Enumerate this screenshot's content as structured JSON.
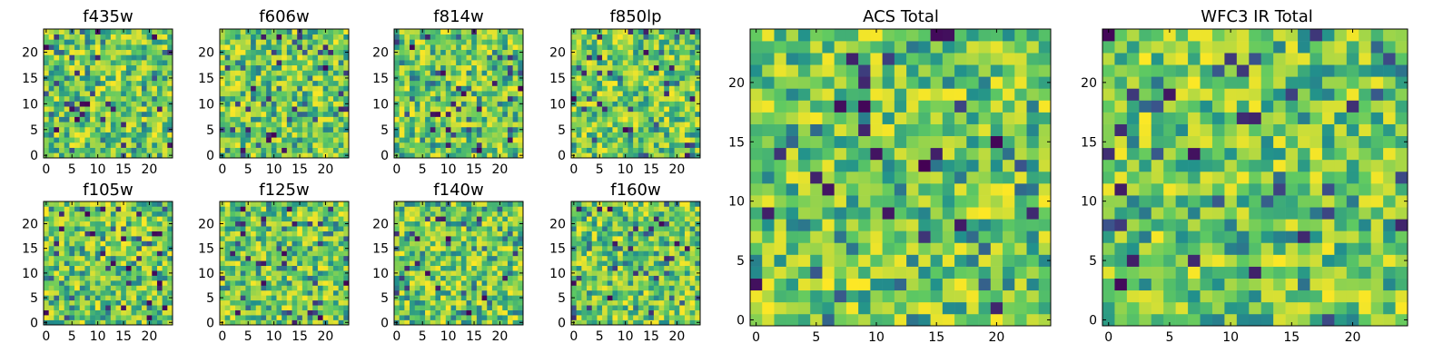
{
  "figure": {
    "panels_row1": [
      {
        "title": "f435w"
      },
      {
        "title": "f606w"
      },
      {
        "title": "f814w"
      },
      {
        "title": "f850lp"
      }
    ],
    "panels_row2": [
      {
        "title": "f105w"
      },
      {
        "title": "f125w"
      },
      {
        "title": "f140w"
      },
      {
        "title": "f160w"
      }
    ],
    "acs_total": {
      "title": "ACS Total"
    },
    "wfc3_total": {
      "title": "WFC3 IR Total"
    }
  },
  "colors": {
    "viridis": [
      "#440154",
      "#3b528b",
      "#21918c",
      "#5ec962",
      "#fde725"
    ]
  },
  "chart_data": [
    {
      "type": "heatmap",
      "title": "f435w",
      "grid_size": 25,
      "xticks": [
        "0",
        "5",
        "10",
        "15",
        "20"
      ],
      "yticks": [
        "0",
        "5",
        "10",
        "15",
        "20"
      ],
      "xlim": [
        -0.5,
        24.5
      ],
      "ylim": [
        -0.5,
        24.5
      ],
      "colormap": "viridis",
      "seed": 11,
      "value_range": [
        0,
        1
      ]
    },
    {
      "type": "heatmap",
      "title": "f606w",
      "grid_size": 25,
      "xticks": [
        "0",
        "5",
        "10",
        "15",
        "20"
      ],
      "yticks": [
        "0",
        "5",
        "10",
        "15",
        "20"
      ],
      "xlim": [
        -0.5,
        24.5
      ],
      "ylim": [
        -0.5,
        24.5
      ],
      "colormap": "viridis",
      "seed": 23,
      "value_range": [
        0,
        1
      ]
    },
    {
      "type": "heatmap",
      "title": "f814w",
      "grid_size": 25,
      "xticks": [
        "0",
        "5",
        "10",
        "15",
        "20"
      ],
      "yticks": [
        "0",
        "5",
        "10",
        "15",
        "20"
      ],
      "xlim": [
        -0.5,
        24.5
      ],
      "ylim": [
        -0.5,
        24.5
      ],
      "colormap": "viridis",
      "seed": 37,
      "value_range": [
        0,
        1
      ]
    },
    {
      "type": "heatmap",
      "title": "f850lp",
      "grid_size": 25,
      "xticks": [
        "0",
        "5",
        "10",
        "15",
        "20"
      ],
      "yticks": [
        "0",
        "5",
        "10",
        "15",
        "20"
      ],
      "xlim": [
        -0.5,
        24.5
      ],
      "ylim": [
        -0.5,
        24.5
      ],
      "colormap": "viridis",
      "seed": 41,
      "value_range": [
        0,
        1
      ]
    },
    {
      "type": "heatmap",
      "title": "f105w",
      "grid_size": 25,
      "xticks": [
        "0",
        "5",
        "10",
        "15",
        "20"
      ],
      "yticks": [
        "0",
        "5",
        "10",
        "15",
        "20"
      ],
      "xlim": [
        -0.5,
        24.5
      ],
      "ylim": [
        -0.5,
        24.5
      ],
      "colormap": "viridis",
      "seed": 53,
      "value_range": [
        0,
        1
      ]
    },
    {
      "type": "heatmap",
      "title": "f125w",
      "grid_size": 25,
      "xticks": [
        "0",
        "5",
        "10",
        "15",
        "20"
      ],
      "yticks": [
        "0",
        "5",
        "10",
        "15",
        "20"
      ],
      "xlim": [
        -0.5,
        24.5
      ],
      "ylim": [
        -0.5,
        24.5
      ],
      "colormap": "viridis",
      "seed": 67,
      "value_range": [
        0,
        1
      ]
    },
    {
      "type": "heatmap",
      "title": "f140w",
      "grid_size": 25,
      "xticks": [
        "0",
        "5",
        "10",
        "15",
        "20"
      ],
      "yticks": [
        "0",
        "5",
        "10",
        "15",
        "20"
      ],
      "xlim": [
        -0.5,
        24.5
      ],
      "ylim": [
        -0.5,
        24.5
      ],
      "colormap": "viridis",
      "seed": 79,
      "value_range": [
        0,
        1
      ]
    },
    {
      "type": "heatmap",
      "title": "f160w",
      "grid_size": 25,
      "xticks": [
        "0",
        "5",
        "10",
        "15",
        "20"
      ],
      "yticks": [
        "0",
        "5",
        "10",
        "15",
        "20"
      ],
      "xlim": [
        -0.5,
        24.5
      ],
      "ylim": [
        -0.5,
        24.5
      ],
      "colormap": "viridis",
      "seed": 83,
      "value_range": [
        0,
        1
      ]
    },
    {
      "type": "heatmap",
      "title": "ACS Total",
      "grid_size": 25,
      "xticks": [
        "0",
        "5",
        "10",
        "15",
        "20"
      ],
      "yticks": [
        "0",
        "5",
        "10",
        "15",
        "20"
      ],
      "xlim": [
        -0.5,
        24.5
      ],
      "ylim": [
        -0.5,
        24.5
      ],
      "colormap": "viridis",
      "seed": 97,
      "value_range": [
        0,
        1
      ]
    },
    {
      "type": "heatmap",
      "title": "WFC3 IR Total",
      "grid_size": 25,
      "xticks": [
        "0",
        "5",
        "10",
        "15",
        "20"
      ],
      "yticks": [
        "0",
        "5",
        "10",
        "15",
        "20"
      ],
      "xlim": [
        -0.5,
        24.5
      ],
      "ylim": [
        -0.5,
        24.5
      ],
      "colormap": "viridis",
      "seed": 101,
      "value_range": [
        0,
        1
      ]
    }
  ]
}
